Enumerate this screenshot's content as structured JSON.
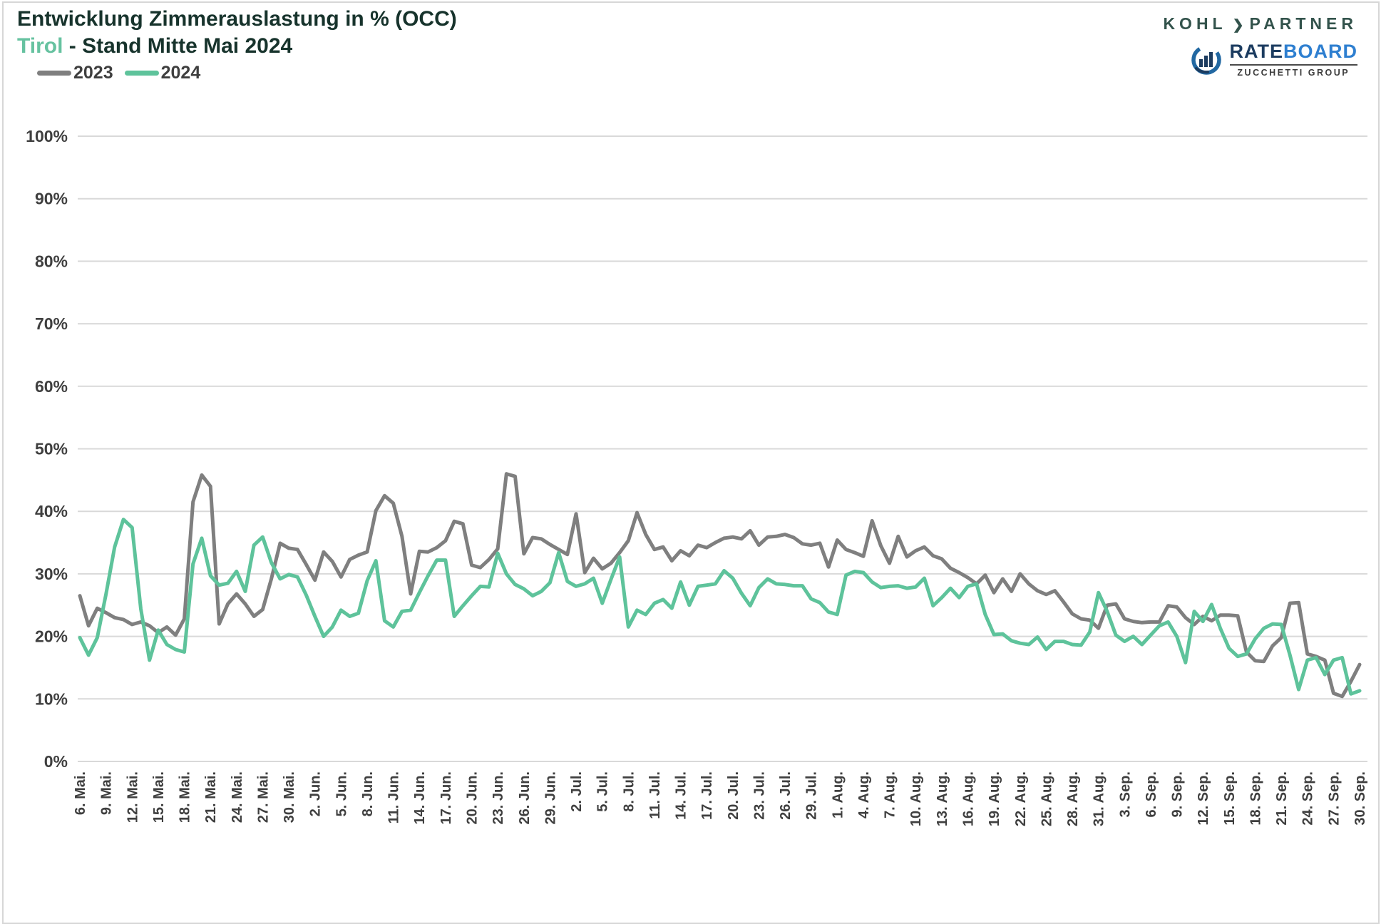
{
  "header": {
    "title_line1": "Entwicklung Zimmerauslastung in % (OCC)",
    "title_region": "Tirol",
    "title_rest": " - Stand Mitte Mai 2024"
  },
  "legend": [
    {
      "label": "2023",
      "color": "#7f7f7f"
    },
    {
      "label": "2024",
      "color": "#5ec39b"
    }
  ],
  "logos": {
    "kohl_partner": {
      "part1": "KOHL",
      "arrow": "❯",
      "part2": "PARTNER"
    },
    "rateboard": {
      "rate": "RATE",
      "board": "BOARD",
      "subtitle": "ZUCCHETTI GROUP"
    }
  },
  "chart_data": {
    "type": "line",
    "title": "Entwicklung Zimmerauslastung in % (OCC)",
    "subtitle": "Tirol - Stand Mitte Mai 2024",
    "ylabel": "",
    "xlabel": "",
    "ylim": [
      0,
      100
    ],
    "ytick_step_percent": 10,
    "grid": true,
    "grid_color": "#d9d9d9",
    "legend_position": "top-left",
    "x_unit": "day",
    "x_label_step": 3,
    "x_labels": [
      "6. Mai.",
      "9. Mai.",
      "12. Mai.",
      "15. Mai.",
      "18. Mai.",
      "21. Mai.",
      "24. Mai.",
      "27. Mai.",
      "30. Mai.",
      "2. Jun.",
      "5. Jun.",
      "8. Jun.",
      "11. Jun.",
      "14. Jun.",
      "17. Jun.",
      "20. Jun.",
      "23. Jun.",
      "26. Jun.",
      "29. Jun.",
      "2. Jul.",
      "5. Jul.",
      "8. Jul.",
      "11. Jul.",
      "14. Jul.",
      "17. Jul.",
      "20. Jul.",
      "23. Jul.",
      "26. Jul.",
      "29. Jul.",
      "1. Aug.",
      "4. Aug.",
      "7. Aug.",
      "10. Aug.",
      "13. Aug.",
      "16. Aug.",
      "19. Aug.",
      "22. Aug.",
      "25. Aug.",
      "28. Aug.",
      "31. Aug.",
      "3. Sep.",
      "6. Sep.",
      "9. Sep.",
      "12. Sep.",
      "15. Sep.",
      "18. Sep.",
      "21. Sep.",
      "24. Sep.",
      "27. Sep.",
      "30. Sep."
    ],
    "series": [
      {
        "name": "2023",
        "color": "#7f7f7f",
        "values": [
          26.5,
          21.7,
          24.5,
          23.8,
          23,
          22.7,
          21.9,
          22.3,
          21.7,
          20.6,
          21.5,
          20.2,
          22.8,
          41.5,
          45.8,
          44,
          22,
          25.2,
          26.8,
          25.2,
          23.2,
          24.3,
          29.2,
          34.9,
          34.1,
          33.9,
          31.5,
          29,
          33.5,
          32,
          29.5,
          32.3,
          33,
          33.5,
          40.1,
          42.5,
          41.3,
          36,
          26.8,
          33.6,
          33.5,
          34.2,
          35.3,
          38.4,
          38,
          31.4,
          31,
          32.3,
          34,
          46,
          45.6,
          33.2,
          35.8,
          35.6,
          34.7,
          33.9,
          33.1,
          39.6,
          30.2,
          32.5,
          30.8,
          31.7,
          33.4,
          35.3,
          39.8,
          36.3,
          33.9,
          34.3,
          32.1,
          33.7,
          32.9,
          34.6,
          34.2,
          35,
          35.7,
          35.9,
          35.6,
          36.9,
          34.6,
          35.9,
          36,
          36.3,
          35.8,
          34.8,
          34.6,
          34.9,
          31.1,
          35.4,
          33.9,
          33.4,
          32.8,
          38.5,
          34.5,
          31.7,
          36,
          32.7,
          33.7,
          34.3,
          32.9,
          32.4,
          30.9,
          30.2,
          29.4,
          28.4,
          29.8,
          27,
          29.2,
          27.2,
          30,
          28.4,
          27.3,
          26.7,
          27.3,
          25.5,
          23.6,
          22.8,
          22.6,
          21.3,
          25,
          25.2,
          22.8,
          22.4,
          22.2,
          22.3,
          22.3,
          24.9,
          24.7,
          23,
          21.9,
          23.2,
          22.5,
          23.4,
          23.4,
          23.3,
          17.5,
          16.1,
          16,
          18.5,
          19.8,
          25.3,
          25.4,
          17.2,
          16.8,
          16.2,
          10.9,
          10.4,
          12.8,
          15.5
        ]
      },
      {
        "name": "2024",
        "color": "#5ec39b",
        "values": [
          19.8,
          17,
          19.8,
          26.7,
          34.3,
          38.7,
          37.4,
          24.4,
          16.2,
          21,
          18.7,
          17.9,
          17.5,
          31.6,
          35.7,
          29.7,
          28.2,
          28.5,
          30.4,
          27.2,
          34.6,
          35.9,
          31.8,
          29.2,
          29.9,
          29.5,
          26.6,
          23.2,
          20,
          21.5,
          24.2,
          23.2,
          23.7,
          28.9,
          32.1,
          22.5,
          21.5,
          24,
          24.2,
          27,
          29.7,
          32.2,
          32.2,
          23.2,
          24.9,
          26.5,
          28,
          27.9,
          33.3,
          30,
          28.3,
          27.6,
          26.5,
          27.2,
          28.6,
          33.4,
          28.8,
          28,
          28.4,
          29.3,
          25.3,
          29.1,
          32.7,
          21.5,
          24.2,
          23.5,
          25.3,
          25.9,
          24.5,
          28.7,
          25,
          28,
          28.2,
          28.4,
          30.5,
          29.3,
          26.9,
          24.9,
          27.8,
          29.2,
          28.4,
          28.3,
          28.1,
          28.1,
          26,
          25.4,
          23.9,
          23.5,
          29.8,
          30.4,
          30.2,
          28.7,
          27.8,
          28,
          28.1,
          27.7,
          27.9,
          29.3,
          24.9,
          26.2,
          27.7,
          26.2,
          28,
          28.4,
          23.5,
          20.3,
          20.4,
          19.3,
          18.9,
          18.7,
          19.9,
          17.9,
          19.2,
          19.2,
          18.7,
          18.6,
          20.7,
          27,
          24,
          20.2,
          19.2,
          20,
          18.7,
          20.2,
          21.7,
          22.3,
          20,
          15.8,
          24,
          22.4,
          25.1,
          21.3,
          18.1,
          16.8,
          17.2,
          19.6,
          21.3,
          22,
          21.9,
          17,
          11.5,
          16.2,
          16.6,
          13.9,
          16.2,
          16.6,
          10.8,
          11.3
        ]
      }
    ]
  }
}
